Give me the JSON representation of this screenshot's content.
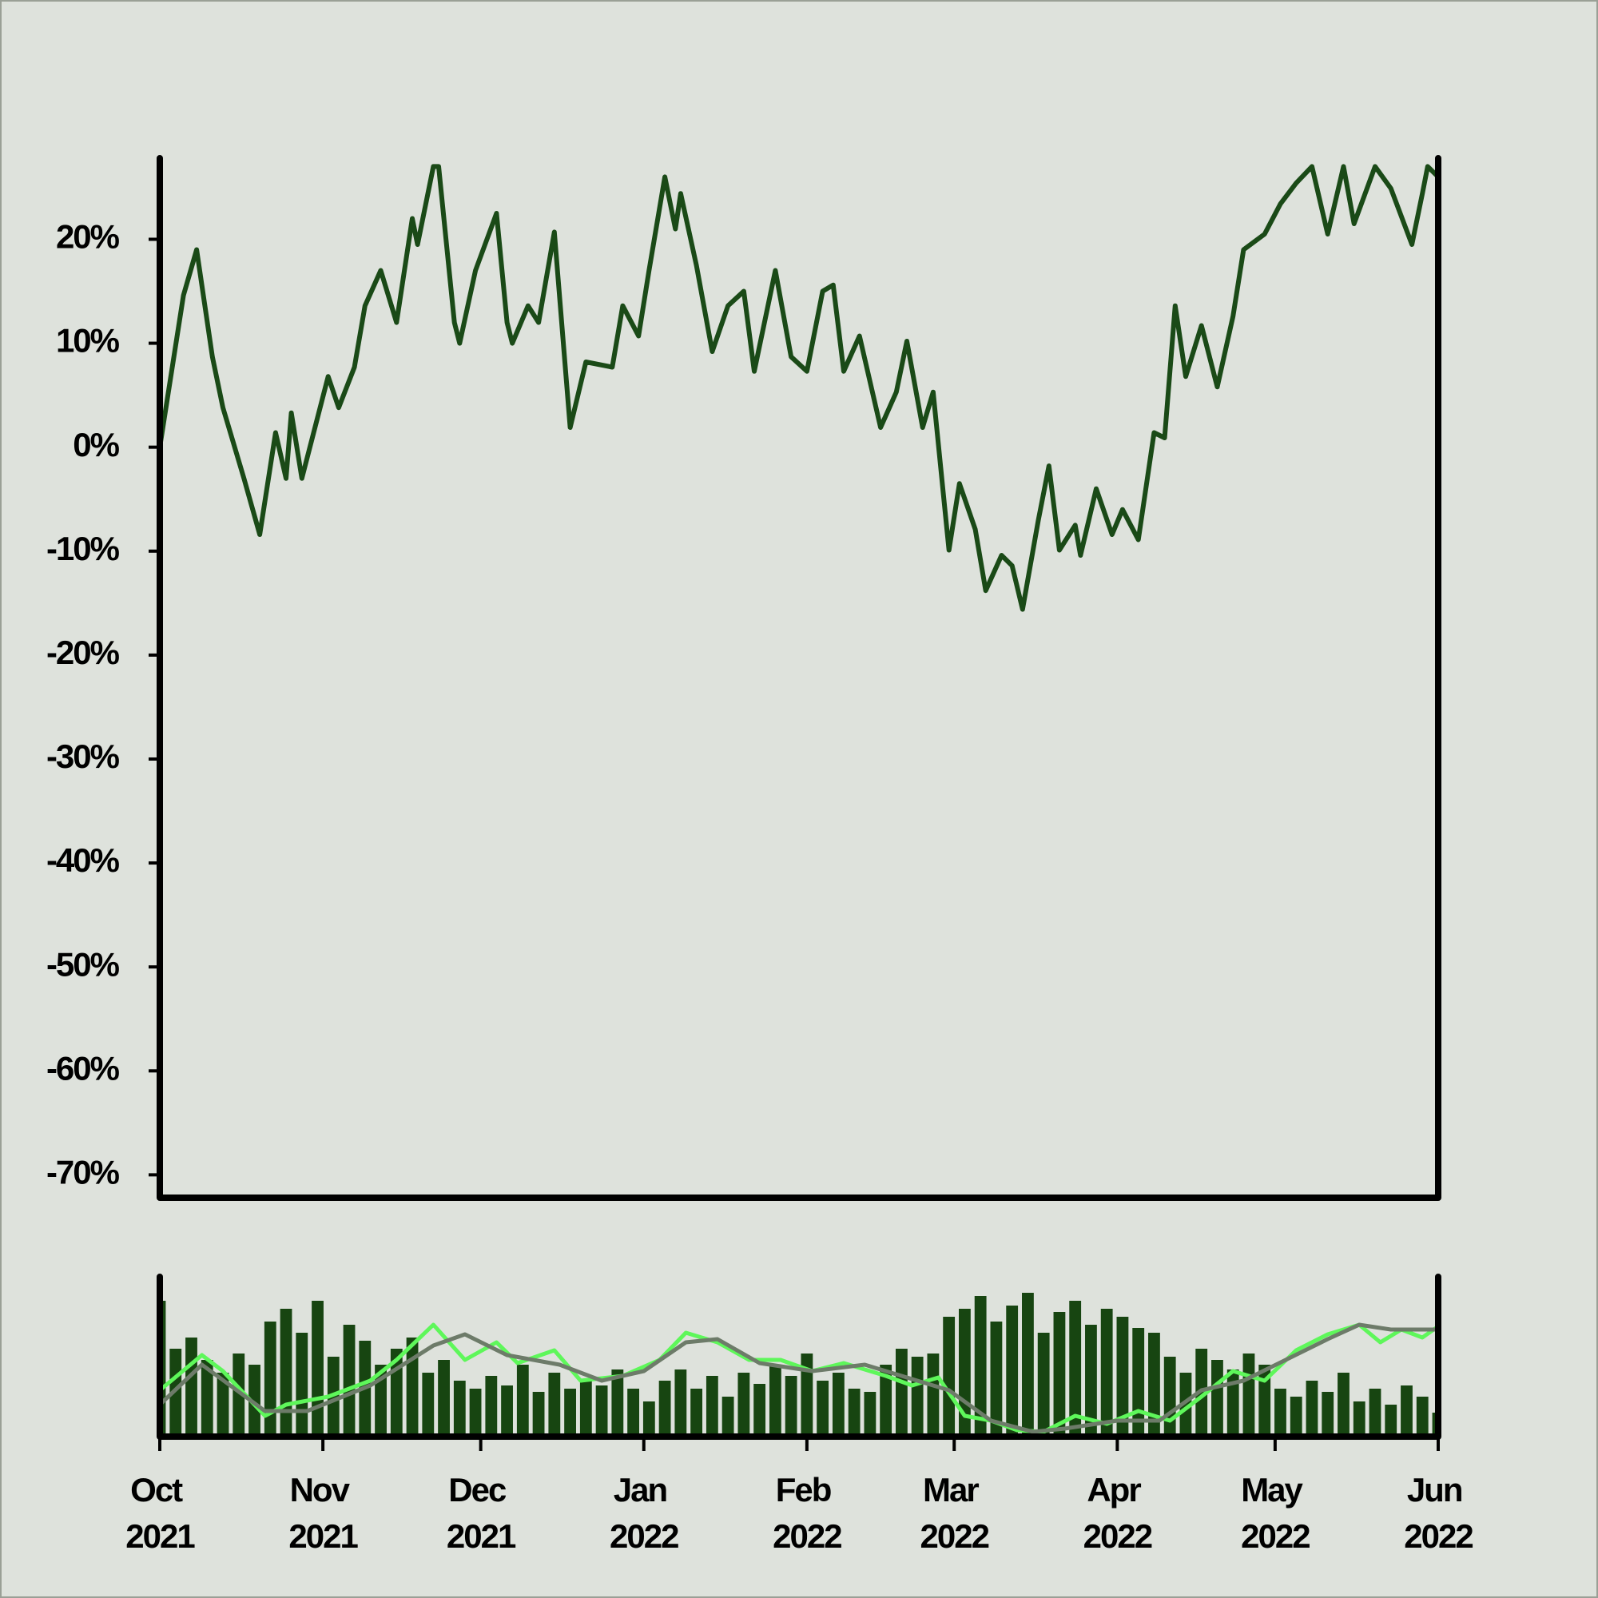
{
  "chart_data": [
    {
      "type": "line",
      "x": [
        0,
        4.5,
        7,
        10,
        12,
        16,
        19,
        22,
        24,
        25,
        27,
        32,
        34,
        37,
        39,
        42,
        45,
        48,
        49,
        52,
        53,
        56,
        57,
        60,
        64,
        66,
        67,
        70,
        72,
        75,
        78,
        81,
        86,
        88,
        91,
        93,
        96,
        98,
        99,
        102,
        105,
        108,
        111,
        113,
        117,
        120,
        123,
        126,
        128,
        130,
        133,
        137,
        140,
        142,
        145,
        147,
        150,
        152,
        155,
        157,
        160,
        162,
        164,
        167,
        169,
        171,
        174,
        175,
        178,
        181,
        183,
        186,
        189,
        191,
        193,
        195,
        198,
        201,
        204,
        206,
        210,
        213,
        216,
        219,
        222,
        225,
        227,
        231,
        234,
        238,
        240,
        241,
        243
      ],
      "series": [
        {
          "color": "#1a4a17",
          "values": [
            0,
            14.6,
            19,
            8.7,
            3.8,
            -3,
            -8.4,
            1.4,
            -3,
            3.3,
            -3,
            6.8,
            3.8,
            7.7,
            13.6,
            17,
            12,
            22,
            19.5,
            27,
            27,
            12,
            10,
            17,
            22.5,
            12,
            10,
            13.6,
            12,
            20.7,
            1.9,
            8.2,
            7.7,
            13.6,
            10.7,
            17,
            26,
            21,
            24.4,
            17.5,
            9.2,
            13.6,
            15,
            7.3,
            17,
            8.7,
            7.3,
            15,
            15.6,
            7.3,
            10.7,
            1.9,
            5.3,
            10.2,
            1.9,
            5.3,
            -9.9,
            -3.5,
            -7.9,
            -13.8,
            -10.4,
            -11.4,
            -15.6,
            -7,
            -1.8,
            -9.9,
            -7.5,
            -10.4,
            -4,
            -8.4,
            -6,
            -8.9,
            1.4,
            0.9,
            13.6,
            6.8,
            11.7,
            5.8,
            12.6,
            19,
            20.5,
            23.4,
            25.4,
            27,
            20.5,
            27,
            21.5,
            27,
            24.9,
            19.5,
            24.4,
            27,
            26
          ]
        }
      ],
      "xlim": [
        0,
        243
      ],
      "ylim": [
        -72.2,
        27.8
      ],
      "yticks": [
        {
          "value": -70,
          "label": "-70%"
        },
        {
          "value": -60,
          "label": "-60%"
        },
        {
          "value": -50,
          "label": "-50%"
        },
        {
          "value": -40,
          "label": "-40%"
        },
        {
          "value": -30,
          "label": "-30%"
        },
        {
          "value": -20,
          "label": "-20%"
        },
        {
          "value": -10,
          "label": "-10%"
        },
        {
          "value": 0,
          "label": "0%"
        },
        {
          "value": 10,
          "label": "10%"
        },
        {
          "value": 20,
          "label": "20%"
        }
      ]
    },
    {
      "type": "bar",
      "x": [
        0,
        3,
        6,
        9,
        12,
        15,
        18,
        21,
        24,
        27,
        30,
        33,
        36,
        39,
        42,
        45,
        48,
        51,
        54,
        57,
        60,
        63,
        66,
        69,
        72,
        75,
        78,
        81,
        84,
        87,
        90,
        93,
        96,
        99,
        102,
        105,
        108,
        111,
        114,
        117,
        120,
        123,
        126,
        129,
        132,
        135,
        138,
        141,
        144,
        147,
        150,
        153,
        156,
        159,
        162,
        165,
        168,
        171,
        174,
        177,
        180,
        183,
        186,
        189,
        192,
        195,
        198,
        201,
        204,
        207,
        210,
        213,
        216,
        219,
        222,
        225,
        228,
        231,
        234,
        237,
        240,
        243
      ],
      "values": [
        85,
        55,
        62,
        48,
        40,
        52,
        45,
        72,
        80,
        65,
        85,
        50,
        70,
        60,
        45,
        55,
        62,
        40,
        48,
        35,
        30,
        38,
        32,
        45,
        28,
        40,
        30,
        35,
        32,
        42,
        30,
        22,
        35,
        42,
        30,
        38,
        25,
        40,
        33,
        45,
        38,
        52,
        35,
        40,
        30,
        28,
        45,
        55,
        50,
        52,
        75,
        80,
        88,
        72,
        82,
        90,
        65,
        78,
        85,
        70,
        80,
        75,
        68,
        65,
        50,
        40,
        55,
        48,
        42,
        52,
        45,
        30,
        25,
        35,
        28,
        40,
        22,
        30,
        20,
        32,
        25,
        15
      ],
      "color": "#174511",
      "overlays": [
        {
          "type": "line",
          "color": "#5ef75a",
          "x": [
            0,
            8,
            12,
            20,
            24,
            32,
            40,
            45,
            52,
            58,
            64,
            68,
            75,
            80,
            88,
            95,
            100,
            106,
            112,
            118,
            124,
            130,
            138,
            143,
            148,
            153,
            158,
            163,
            168,
            174,
            180,
            186,
            192,
            198,
            204,
            210,
            216,
            222,
            228,
            232,
            236,
            240,
            243
          ],
          "values": [
            29,
            51,
            41,
            13,
            20,
            25,
            35,
            48,
            70,
            48,
            59,
            46,
            54,
            35,
            38,
            48,
            65,
            59,
            48,
            48,
            41,
            46,
            38,
            32,
            37,
            13,
            10,
            4,
            3,
            13,
            8,
            16,
            10,
            25,
            41,
            35,
            54,
            64,
            70,
            59,
            67,
            62,
            69
          ]
        },
        {
          "type": "line",
          "color": "#6d7b69",
          "x": [
            0,
            8,
            20,
            28,
            40,
            52,
            58,
            66,
            76,
            84,
            92,
            100,
            106,
            114,
            124,
            134,
            144,
            150,
            158,
            166,
            172,
            182,
            190,
            198,
            206,
            214,
            222,
            228,
            234,
            243
          ],
          "values": [
            20,
            45,
            16,
            16,
            32,
            57,
            64,
            51,
            45,
            35,
            41,
            59,
            61,
            46,
            41,
            45,
            35,
            29,
            10,
            3,
            5,
            10,
            10,
            29,
            35,
            48,
            61,
            70,
            67,
            67
          ]
        }
      ],
      "xlim": [
        0,
        243
      ],
      "ylim": [
        0,
        100
      ],
      "xticks": [
        {
          "value": 0,
          "label": "Oct 2021"
        },
        {
          "value": 31,
          "label": "Nov 2021"
        },
        {
          "value": 61,
          "label": "Dec 2021"
        },
        {
          "value": 92,
          "label": "Jan 2022"
        },
        {
          "value": 123,
          "label": "Feb 2022"
        },
        {
          "value": 151,
          "label": "Mar 2022"
        },
        {
          "value": 182,
          "label": "Apr 2022"
        },
        {
          "value": 212,
          "label": "May 2022"
        },
        {
          "value": 243,
          "label": "Jun 2022"
        }
      ]
    }
  ]
}
